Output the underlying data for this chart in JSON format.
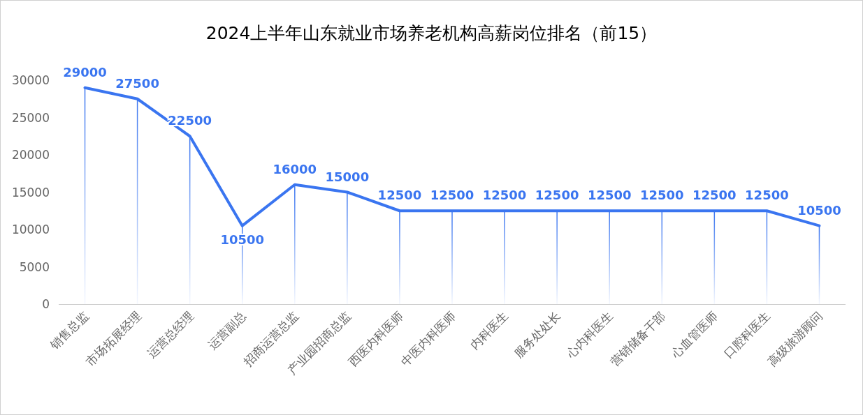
{
  "chart_data": {
    "type": "line",
    "title": "2024上半年山东就业市场养老机构高薪岗位排名（前15）",
    "categories": [
      "销售总监",
      "市场拓展经理",
      "运营总经理",
      "运营副总",
      "招商运营总监",
      "产业园招商总监",
      "西医内科医师",
      "中医内科医师",
      "内科医生",
      "服务处处长",
      "心内科医生",
      "营销储备干部",
      "心血管医师",
      "口腔科医生",
      "高级旅游顾问"
    ],
    "series": [
      {
        "color": "#3a75f0",
        "values": [
          29000,
          27500,
          22500,
          10500,
          16000,
          15000,
          12500,
          12500,
          12500,
          12500,
          12500,
          12500,
          12500,
          12500,
          10500
        ]
      },
      {
        "type": "bar",
        "color": "#3a75f0",
        "values": [
          29000,
          27500,
          22500,
          10500,
          16000,
          15000,
          12500,
          12500,
          12500,
          12500,
          12500,
          12500,
          12500,
          12500,
          10500
        ],
        "value_labels": [
          null,
          null,
          null,
          null,
          null,
          null,
          null,
          null,
          null,
          null,
          null,
          null,
          null,
          null,
          null
        ]
      }
    ],
    "ylim": [
      0,
      30000
    ],
    "yticks": [
      0,
      5000,
      10000,
      15000,
      20000,
      25000,
      30000
    ],
    "data_labels": true,
    "grid": false,
    "legend": false,
    "marker": "none",
    "line_style": "solid"
  }
}
